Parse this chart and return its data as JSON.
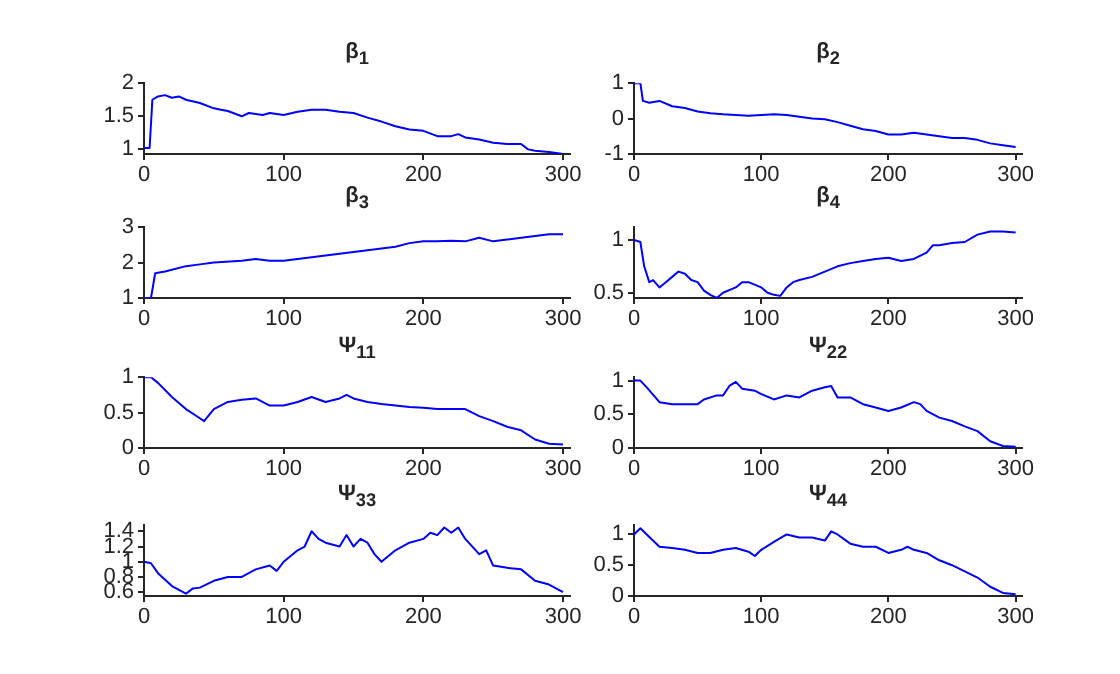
{
  "chart_data": [
    {
      "type": "line",
      "title": "β$_{1}$",
      "xlim": [
        0,
        305
      ],
      "xticks": [
        0,
        100,
        200,
        300
      ],
      "ylim": [
        0.93,
        2
      ],
      "yticks": [
        1,
        1.5,
        2
      ],
      "grid": false,
      "marker": "none",
      "line_style": "solid",
      "series": [
        {
          "color": "#0000ff",
          "x": [
            0,
            4,
            6,
            10,
            15,
            20,
            25,
            30,
            40,
            50,
            55,
            60,
            70,
            75,
            85,
            90,
            100,
            110,
            120,
            130,
            140,
            150,
            160,
            170,
            180,
            190,
            200,
            210,
            220,
            225,
            230,
            240,
            250,
            260,
            270,
            275,
            280,
            290,
            300
          ],
          "values": [
            1.02,
            1.02,
            1.75,
            1.8,
            1.82,
            1.78,
            1.8,
            1.75,
            1.7,
            1.62,
            1.6,
            1.58,
            1.5,
            1.55,
            1.52,
            1.55,
            1.52,
            1.57,
            1.6,
            1.6,
            1.57,
            1.55,
            1.48,
            1.42,
            1.35,
            1.3,
            1.28,
            1.2,
            1.2,
            1.23,
            1.18,
            1.15,
            1.1,
            1.08,
            1.08,
            1.0,
            0.98,
            0.96,
            0.93
          ]
        }
      ]
    },
    {
      "type": "line",
      "title": "β$_{2}$",
      "xlim": [
        0,
        305
      ],
      "xticks": [
        0,
        100,
        200,
        300
      ],
      "ylim": [
        -1,
        1
      ],
      "yticks": [
        -1,
        0,
        1
      ],
      "grid": false,
      "marker": "none",
      "line_style": "solid",
      "series": [
        {
          "color": "#0000ff",
          "x": [
            0,
            5,
            7,
            12,
            20,
            30,
            40,
            50,
            60,
            70,
            80,
            90,
            100,
            110,
            120,
            130,
            140,
            150,
            160,
            170,
            180,
            190,
            200,
            210,
            220,
            230,
            240,
            250,
            260,
            270,
            280,
            290,
            300
          ],
          "values": [
            1,
            1,
            0.5,
            0.45,
            0.5,
            0.35,
            0.3,
            0.2,
            0.15,
            0.12,
            0.1,
            0.08,
            0.1,
            0.12,
            0.1,
            0.05,
            0.0,
            -0.02,
            -0.1,
            -0.2,
            -0.3,
            -0.35,
            -0.45,
            -0.45,
            -0.4,
            -0.45,
            -0.5,
            -0.55,
            -0.55,
            -0.6,
            -0.7,
            -0.75,
            -0.8
          ]
        }
      ]
    },
    {
      "type": "line",
      "title": "β$_{3}$",
      "xlim": [
        0,
        305
      ],
      "xticks": [
        0,
        100,
        200,
        300
      ],
      "ylim": [
        1,
        3
      ],
      "yticks": [
        1,
        2,
        3
      ],
      "grid": false,
      "marker": "none",
      "line_style": "solid",
      "series": [
        {
          "color": "#0000ff",
          "x": [
            0,
            5,
            8,
            15,
            20,
            30,
            40,
            50,
            70,
            80,
            90,
            100,
            110,
            120,
            130,
            140,
            150,
            160,
            170,
            180,
            190,
            200,
            210,
            220,
            230,
            240,
            250,
            260,
            270,
            280,
            290,
            300
          ],
          "values": [
            1,
            1,
            1.7,
            1.75,
            1.8,
            1.9,
            1.95,
            2.0,
            2.05,
            2.1,
            2.05,
            2.05,
            2.1,
            2.15,
            2.2,
            2.25,
            2.3,
            2.35,
            2.4,
            2.45,
            2.55,
            2.6,
            2.6,
            2.62,
            2.6,
            2.7,
            2.6,
            2.65,
            2.7,
            2.75,
            2.8,
            2.8
          ]
        }
      ]
    },
    {
      "type": "line",
      "title": "β$_{4}$",
      "xlim": [
        0,
        305
      ],
      "xticks": [
        0,
        100,
        200,
        300
      ],
      "ylim": [
        0.45,
        1.12
      ],
      "yticks": [
        0.5,
        1
      ],
      "grid": false,
      "marker": "none",
      "line_style": "solid",
      "series": [
        {
          "color": "#0000ff",
          "x": [
            0,
            5,
            8,
            12,
            15,
            20,
            25,
            30,
            35,
            40,
            45,
            50,
            55,
            60,
            65,
            70,
            80,
            85,
            90,
            100,
            105,
            110,
            115,
            120,
            125,
            130,
            140,
            150,
            160,
            170,
            180,
            190,
            200,
            210,
            220,
            230,
            235,
            240,
            250,
            260,
            270,
            280,
            290,
            300
          ],
          "values": [
            1.0,
            0.98,
            0.75,
            0.6,
            0.62,
            0.55,
            0.6,
            0.65,
            0.7,
            0.68,
            0.62,
            0.6,
            0.52,
            0.48,
            0.45,
            0.5,
            0.55,
            0.6,
            0.6,
            0.55,
            0.5,
            0.48,
            0.47,
            0.55,
            0.6,
            0.62,
            0.65,
            0.7,
            0.75,
            0.78,
            0.8,
            0.82,
            0.83,
            0.8,
            0.82,
            0.88,
            0.95,
            0.95,
            0.97,
            0.98,
            1.05,
            1.08,
            1.08,
            1.07
          ]
        }
      ]
    },
    {
      "type": "line",
      "title": "Ψ$_{11}$",
      "xlim": [
        0,
        305
      ],
      "xticks": [
        0,
        100,
        200,
        300
      ],
      "ylim": [
        0,
        1
      ],
      "yticks": [
        0,
        0.5,
        1
      ],
      "grid": false,
      "marker": "none",
      "line_style": "solid",
      "series": [
        {
          "color": "#0000ff",
          "x": [
            0,
            5,
            10,
            20,
            30,
            40,
            43,
            50,
            60,
            70,
            80,
            90,
            100,
            110,
            120,
            130,
            140,
            145,
            150,
            160,
            170,
            180,
            190,
            200,
            210,
            220,
            230,
            240,
            250,
            260,
            270,
            280,
            290,
            300
          ],
          "values": [
            1,
            1,
            0.92,
            0.72,
            0.55,
            0.42,
            0.38,
            0.55,
            0.65,
            0.68,
            0.7,
            0.6,
            0.6,
            0.65,
            0.72,
            0.65,
            0.7,
            0.75,
            0.7,
            0.65,
            0.62,
            0.6,
            0.58,
            0.57,
            0.55,
            0.55,
            0.55,
            0.45,
            0.38,
            0.3,
            0.25,
            0.12,
            0.06,
            0.05
          ]
        }
      ]
    },
    {
      "type": "line",
      "title": "Ψ$_{22}$",
      "xlim": [
        0,
        305
      ],
      "xticks": [
        0,
        100,
        200,
        300
      ],
      "ylim": [
        0,
        1.05
      ],
      "yticks": [
        0,
        0.5,
        1
      ],
      "grid": false,
      "marker": "none",
      "line_style": "solid",
      "series": [
        {
          "color": "#0000ff",
          "x": [
            0,
            5,
            10,
            20,
            30,
            40,
            50,
            55,
            65,
            70,
            75,
            80,
            85,
            95,
            100,
            110,
            120,
            130,
            140,
            150,
            155,
            160,
            170,
            180,
            190,
            200,
            210,
            220,
            225,
            230,
            240,
            250,
            260,
            270,
            280,
            290,
            300
          ],
          "values": [
            1,
            1,
            0.9,
            0.68,
            0.65,
            0.65,
            0.65,
            0.72,
            0.78,
            0.78,
            0.92,
            0.98,
            0.88,
            0.85,
            0.8,
            0.72,
            0.78,
            0.75,
            0.85,
            0.9,
            0.92,
            0.75,
            0.75,
            0.65,
            0.6,
            0.55,
            0.6,
            0.68,
            0.65,
            0.55,
            0.45,
            0.4,
            0.32,
            0.25,
            0.1,
            0.03,
            0.02
          ]
        }
      ]
    },
    {
      "type": "line",
      "title": "Ψ$_{33}$",
      "xlim": [
        0,
        305
      ],
      "xticks": [
        0,
        100,
        200,
        300
      ],
      "ylim": [
        0.55,
        1.48
      ],
      "yticks": [
        0.6,
        0.8,
        1,
        1.2,
        1.4
      ],
      "grid": false,
      "marker": "none",
      "line_style": "solid",
      "series": [
        {
          "color": "#0000ff",
          "x": [
            0,
            5,
            10,
            20,
            30,
            35,
            40,
            50,
            60,
            70,
            80,
            90,
            95,
            100,
            110,
            115,
            120,
            125,
            130,
            140,
            145,
            150,
            155,
            160,
            165,
            170,
            180,
            190,
            200,
            205,
            210,
            215,
            220,
            225,
            230,
            240,
            245,
            250,
            260,
            270,
            280,
            290,
            300
          ],
          "values": [
            1.0,
            0.98,
            0.85,
            0.68,
            0.58,
            0.65,
            0.66,
            0.75,
            0.8,
            0.8,
            0.9,
            0.95,
            0.88,
            1.0,
            1.15,
            1.2,
            1.4,
            1.3,
            1.25,
            1.2,
            1.35,
            1.2,
            1.3,
            1.25,
            1.1,
            1.0,
            1.15,
            1.25,
            1.3,
            1.38,
            1.35,
            1.45,
            1.38,
            1.45,
            1.3,
            1.1,
            1.15,
            0.95,
            0.92,
            0.9,
            0.75,
            0.7,
            0.6
          ]
        }
      ]
    },
    {
      "type": "line",
      "title": "Ψ$_{44}$",
      "xlim": [
        0,
        305
      ],
      "xticks": [
        0,
        100,
        200,
        300
      ],
      "ylim": [
        0,
        1.15
      ],
      "yticks": [
        0,
        0.5,
        1
      ],
      "grid": false,
      "marker": "none",
      "line_style": "solid",
      "series": [
        {
          "color": "#0000ff",
          "x": [
            0,
            5,
            10,
            20,
            30,
            40,
            50,
            60,
            70,
            80,
            90,
            95,
            100,
            110,
            120,
            130,
            140,
            150,
            155,
            160,
            170,
            180,
            190,
            200,
            210,
            215,
            220,
            230,
            240,
            250,
            260,
            270,
            280,
            290,
            300
          ],
          "values": [
            1.0,
            1.1,
            1.0,
            0.8,
            0.78,
            0.75,
            0.7,
            0.7,
            0.75,
            0.78,
            0.72,
            0.65,
            0.75,
            0.88,
            1.0,
            0.95,
            0.95,
            0.9,
            1.05,
            1.0,
            0.85,
            0.8,
            0.8,
            0.7,
            0.75,
            0.8,
            0.75,
            0.7,
            0.58,
            0.5,
            0.4,
            0.3,
            0.15,
            0.05,
            0.03
          ]
        }
      ]
    }
  ]
}
